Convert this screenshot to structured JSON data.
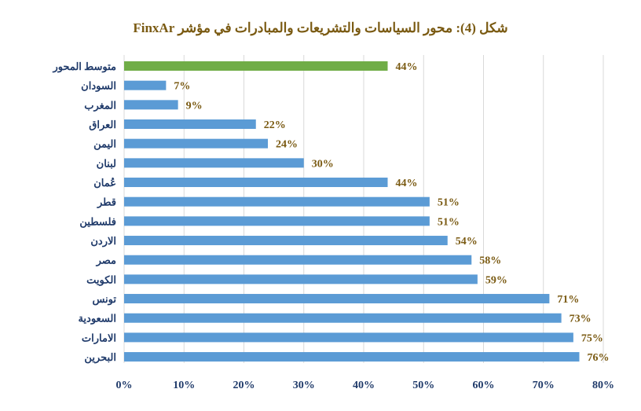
{
  "chart_data": {
    "type": "bar",
    "orientation": "horizontal",
    "title": "شكل (4): محور السياسات والتشريعات والمبادرات في مؤشر FinxAr",
    "categories": [
      "متوسط المحور",
      "السودان",
      "المغرب",
      "العراق",
      "اليمن",
      "لبنان",
      "عُمان",
      "قطر",
      "فلسطين",
      "الاردن",
      "مصر",
      "الكويت",
      "تونس",
      "السعودية",
      "الامارات",
      "البحرين"
    ],
    "values": [
      44,
      7,
      9,
      22,
      24,
      30,
      44,
      51,
      51,
      54,
      58,
      59,
      71,
      73,
      75,
      76
    ],
    "data_labels": [
      "44%",
      "7%",
      "9%",
      "22%",
      "24%",
      "30%",
      "44%",
      "51%",
      "51%",
      "54%",
      "58%",
      "59%",
      "71%",
      "73%",
      "75%",
      "76%"
    ],
    "highlight_index": 0,
    "xlim": [
      0,
      80
    ],
    "x_ticks": [
      0,
      10,
      20,
      30,
      40,
      50,
      60,
      70,
      80
    ],
    "x_tick_labels": [
      "0%",
      "10%",
      "20%",
      "30%",
      "40%",
      "50%",
      "60%",
      "70%",
      "80%"
    ],
    "grid": "vertical",
    "legend": "none",
    "colors": {
      "bar": "#5b9bd5",
      "highlight": "#70ad47",
      "grid": "#d9d9d9",
      "label": "#7a5a12",
      "axis_text": "#1f3a6a"
    }
  }
}
